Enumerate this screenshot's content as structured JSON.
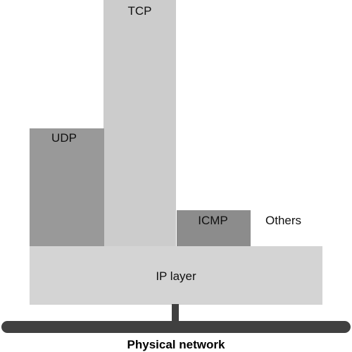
{
  "layers": {
    "tcp": {
      "label": "TCP",
      "color": "#cccccc"
    },
    "udp": {
      "label": "UDP",
      "color": "#999999"
    },
    "icmp": {
      "label": "ICMP",
      "color": "#8c8c8c"
    },
    "others": {
      "label": "Others"
    },
    "ip": {
      "label": "IP layer",
      "color": "#d4d4d4"
    }
  },
  "network": {
    "label": "Physical network",
    "color": "#404040"
  }
}
